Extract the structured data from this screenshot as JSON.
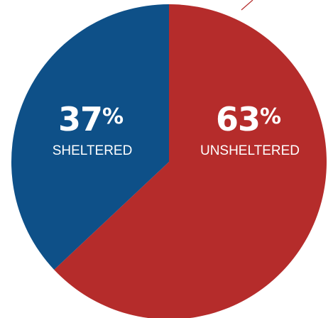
{
  "chart_data": {
    "type": "pie",
    "categories": [
      "SHELTERED",
      "UNSHELTERED"
    ],
    "values": [
      37,
      63
    ],
    "value_labels": [
      "37",
      "63"
    ],
    "percent_sign": "%",
    "colors": [
      "#0e5088",
      "#b52c2b"
    ],
    "start_angle_deg": 0,
    "direction": "counterclockwise",
    "legend": "none"
  },
  "colors": {
    "background": "#ffffff",
    "label_text": "#ffffff",
    "accent_line": "#b52c2b"
  }
}
